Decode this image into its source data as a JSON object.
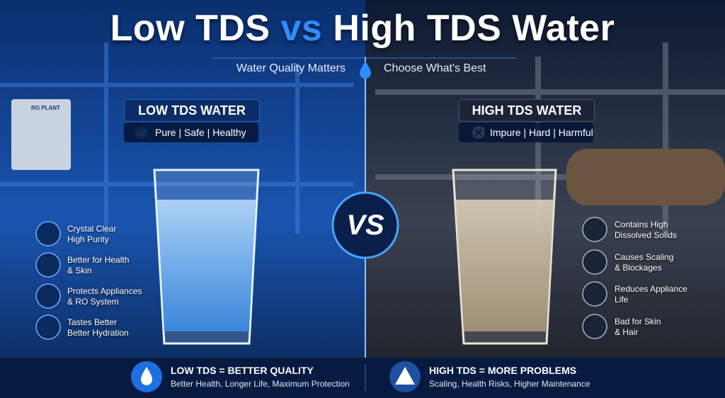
{
  "title": {
    "part1": "Low TDS",
    "part2": "vs",
    "part3": "High TDS Water"
  },
  "subtitle": {
    "left": "Water Quality Matters",
    "right": "Choose What's Best"
  },
  "background_label": "RO PLANT",
  "left_panel": {
    "heading": "LOW TDS WATER",
    "tagline": "Pure | Safe | Healthy",
    "features": [
      {
        "lines": [
          "Crystal Clear",
          "High Purity"
        ]
      },
      {
        "lines": [
          "Better for Health",
          "& Skin"
        ]
      },
      {
        "lines": [
          "Protects Appliances",
          "& RO System"
        ]
      },
      {
        "lines": [
          "Tastes Better",
          "Better Hydration"
        ]
      }
    ]
  },
  "vs_badge": "VS",
  "right_panel": {
    "heading": "HIGH TDS WATER",
    "tagline": "Impure | Hard | Harmful",
    "features": [
      {
        "lines": [
          "Contains High",
          "Dissolved Solids"
        ]
      },
      {
        "lines": [
          "Causes Scaling",
          "& Blockages"
        ]
      },
      {
        "lines": [
          "Reduces Appliance",
          "Life"
        ]
      },
      {
        "lines": [
          "Bad for Skin",
          "& Hair"
        ]
      }
    ]
  },
  "footer": {
    "left": {
      "title": "LOW TDS = BETTER QUALITY",
      "text": "Better Health, Longer Life, Maximum Protection"
    },
    "right": {
      "title": "HIGH TDS = MORE PROBLEMS",
      "text": "Scaling, Health Risks, Higher Maintenance"
    }
  }
}
